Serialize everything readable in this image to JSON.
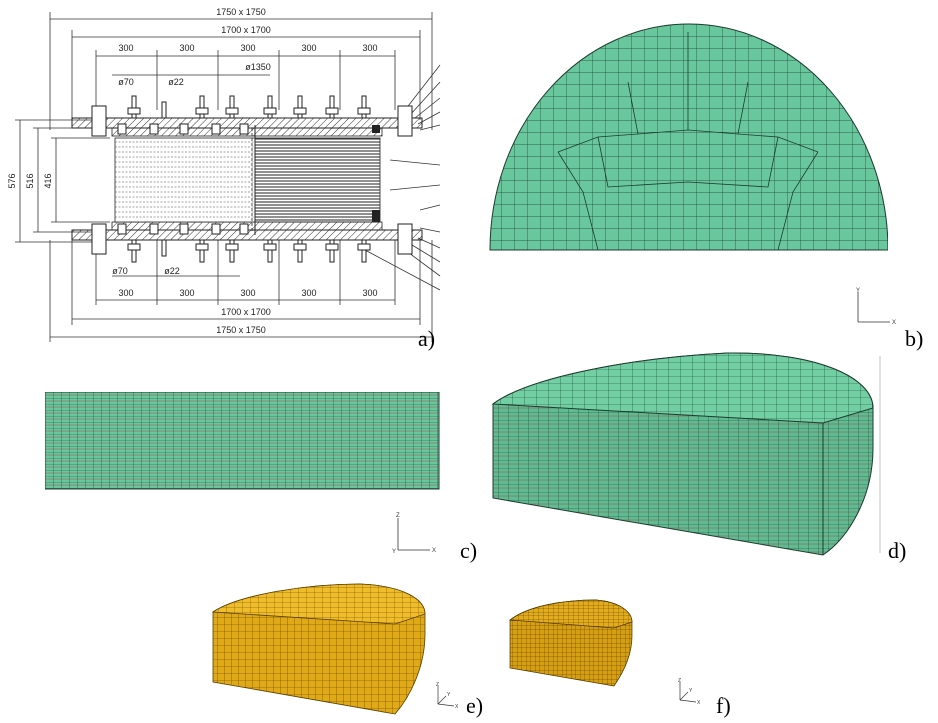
{
  "drawing": {
    "dim_outer_top": "1750 x 1750",
    "dim_inner_top": "1700 x 1700",
    "dim_inner_bottom": "1700 x 1700",
    "dim_outer_bottom": "1750 x 1750",
    "spans_top": [
      "300",
      "300",
      "300",
      "300",
      "300"
    ],
    "spans_bottom": [
      "300",
      "300",
      "300",
      "300",
      "300"
    ],
    "phi70_top": "ø70",
    "phi22_top": "ø22",
    "phi1350": "ø1350",
    "phi70_bottom": "ø70",
    "phi22_bottom": "ø22",
    "height_576": "576",
    "height_516": "516",
    "height_416": "416"
  },
  "axes": {
    "b": {
      "v": "Y",
      "h": "X"
    },
    "c": {
      "v": "Z",
      "h": "X",
      "o": "Y"
    },
    "e": {
      "v": "Z",
      "h": "X",
      "o": "Y"
    },
    "f": {
      "v": "Z",
      "h": "X",
      "o": "Y"
    }
  },
  "labels": {
    "a": "a)",
    "b": "b)",
    "c": "c)",
    "d": "d)",
    "e": "e)",
    "f": "f)"
  },
  "colors": {
    "mesh_green": "#69c79d",
    "mesh_yellow": "#e8b21e",
    "mesh_line": "#1e3b2e",
    "red_line": "#b0303a"
  }
}
